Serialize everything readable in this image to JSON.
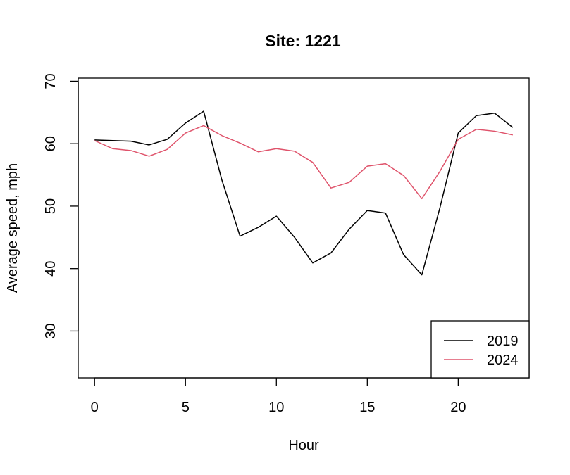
{
  "chart_data": {
    "type": "line",
    "title": "Site: 1221",
    "xlabel": "Hour",
    "ylabel": "Average speed, mph",
    "xlim": [
      -0.9,
      23.9
    ],
    "ylim": [
      22.5,
      70.5
    ],
    "x_ticks": [
      0,
      5,
      10,
      15,
      20
    ],
    "y_ticks": [
      30,
      40,
      50,
      60,
      70
    ],
    "grid": false,
    "legend_position": "bottom-right",
    "x": [
      0,
      1,
      2,
      3,
      4,
      5,
      6,
      7,
      8,
      9,
      10,
      11,
      12,
      13,
      14,
      15,
      16,
      17,
      18,
      19,
      20,
      21,
      22,
      23
    ],
    "series": [
      {
        "name": "2019",
        "color": "#000000",
        "values": [
          60.6,
          60.5,
          60.4,
          59.8,
          60.7,
          63.3,
          65.2,
          54.2,
          45.2,
          46.6,
          48.4,
          45.0,
          40.9,
          42.5,
          46.3,
          49.3,
          48.9,
          42.2,
          39.0,
          49.8,
          61.7,
          64.5,
          64.9,
          62.6
        ]
      },
      {
        "name": "2024",
        "color": "#DF536B",
        "values": [
          60.5,
          59.2,
          58.9,
          58.0,
          59.1,
          61.7,
          62.9,
          61.3,
          60.1,
          58.7,
          59.2,
          58.8,
          57.0,
          52.9,
          53.8,
          56.4,
          56.8,
          54.9,
          51.2,
          55.6,
          60.7,
          62.3,
          62.0,
          61.4
        ]
      }
    ]
  }
}
